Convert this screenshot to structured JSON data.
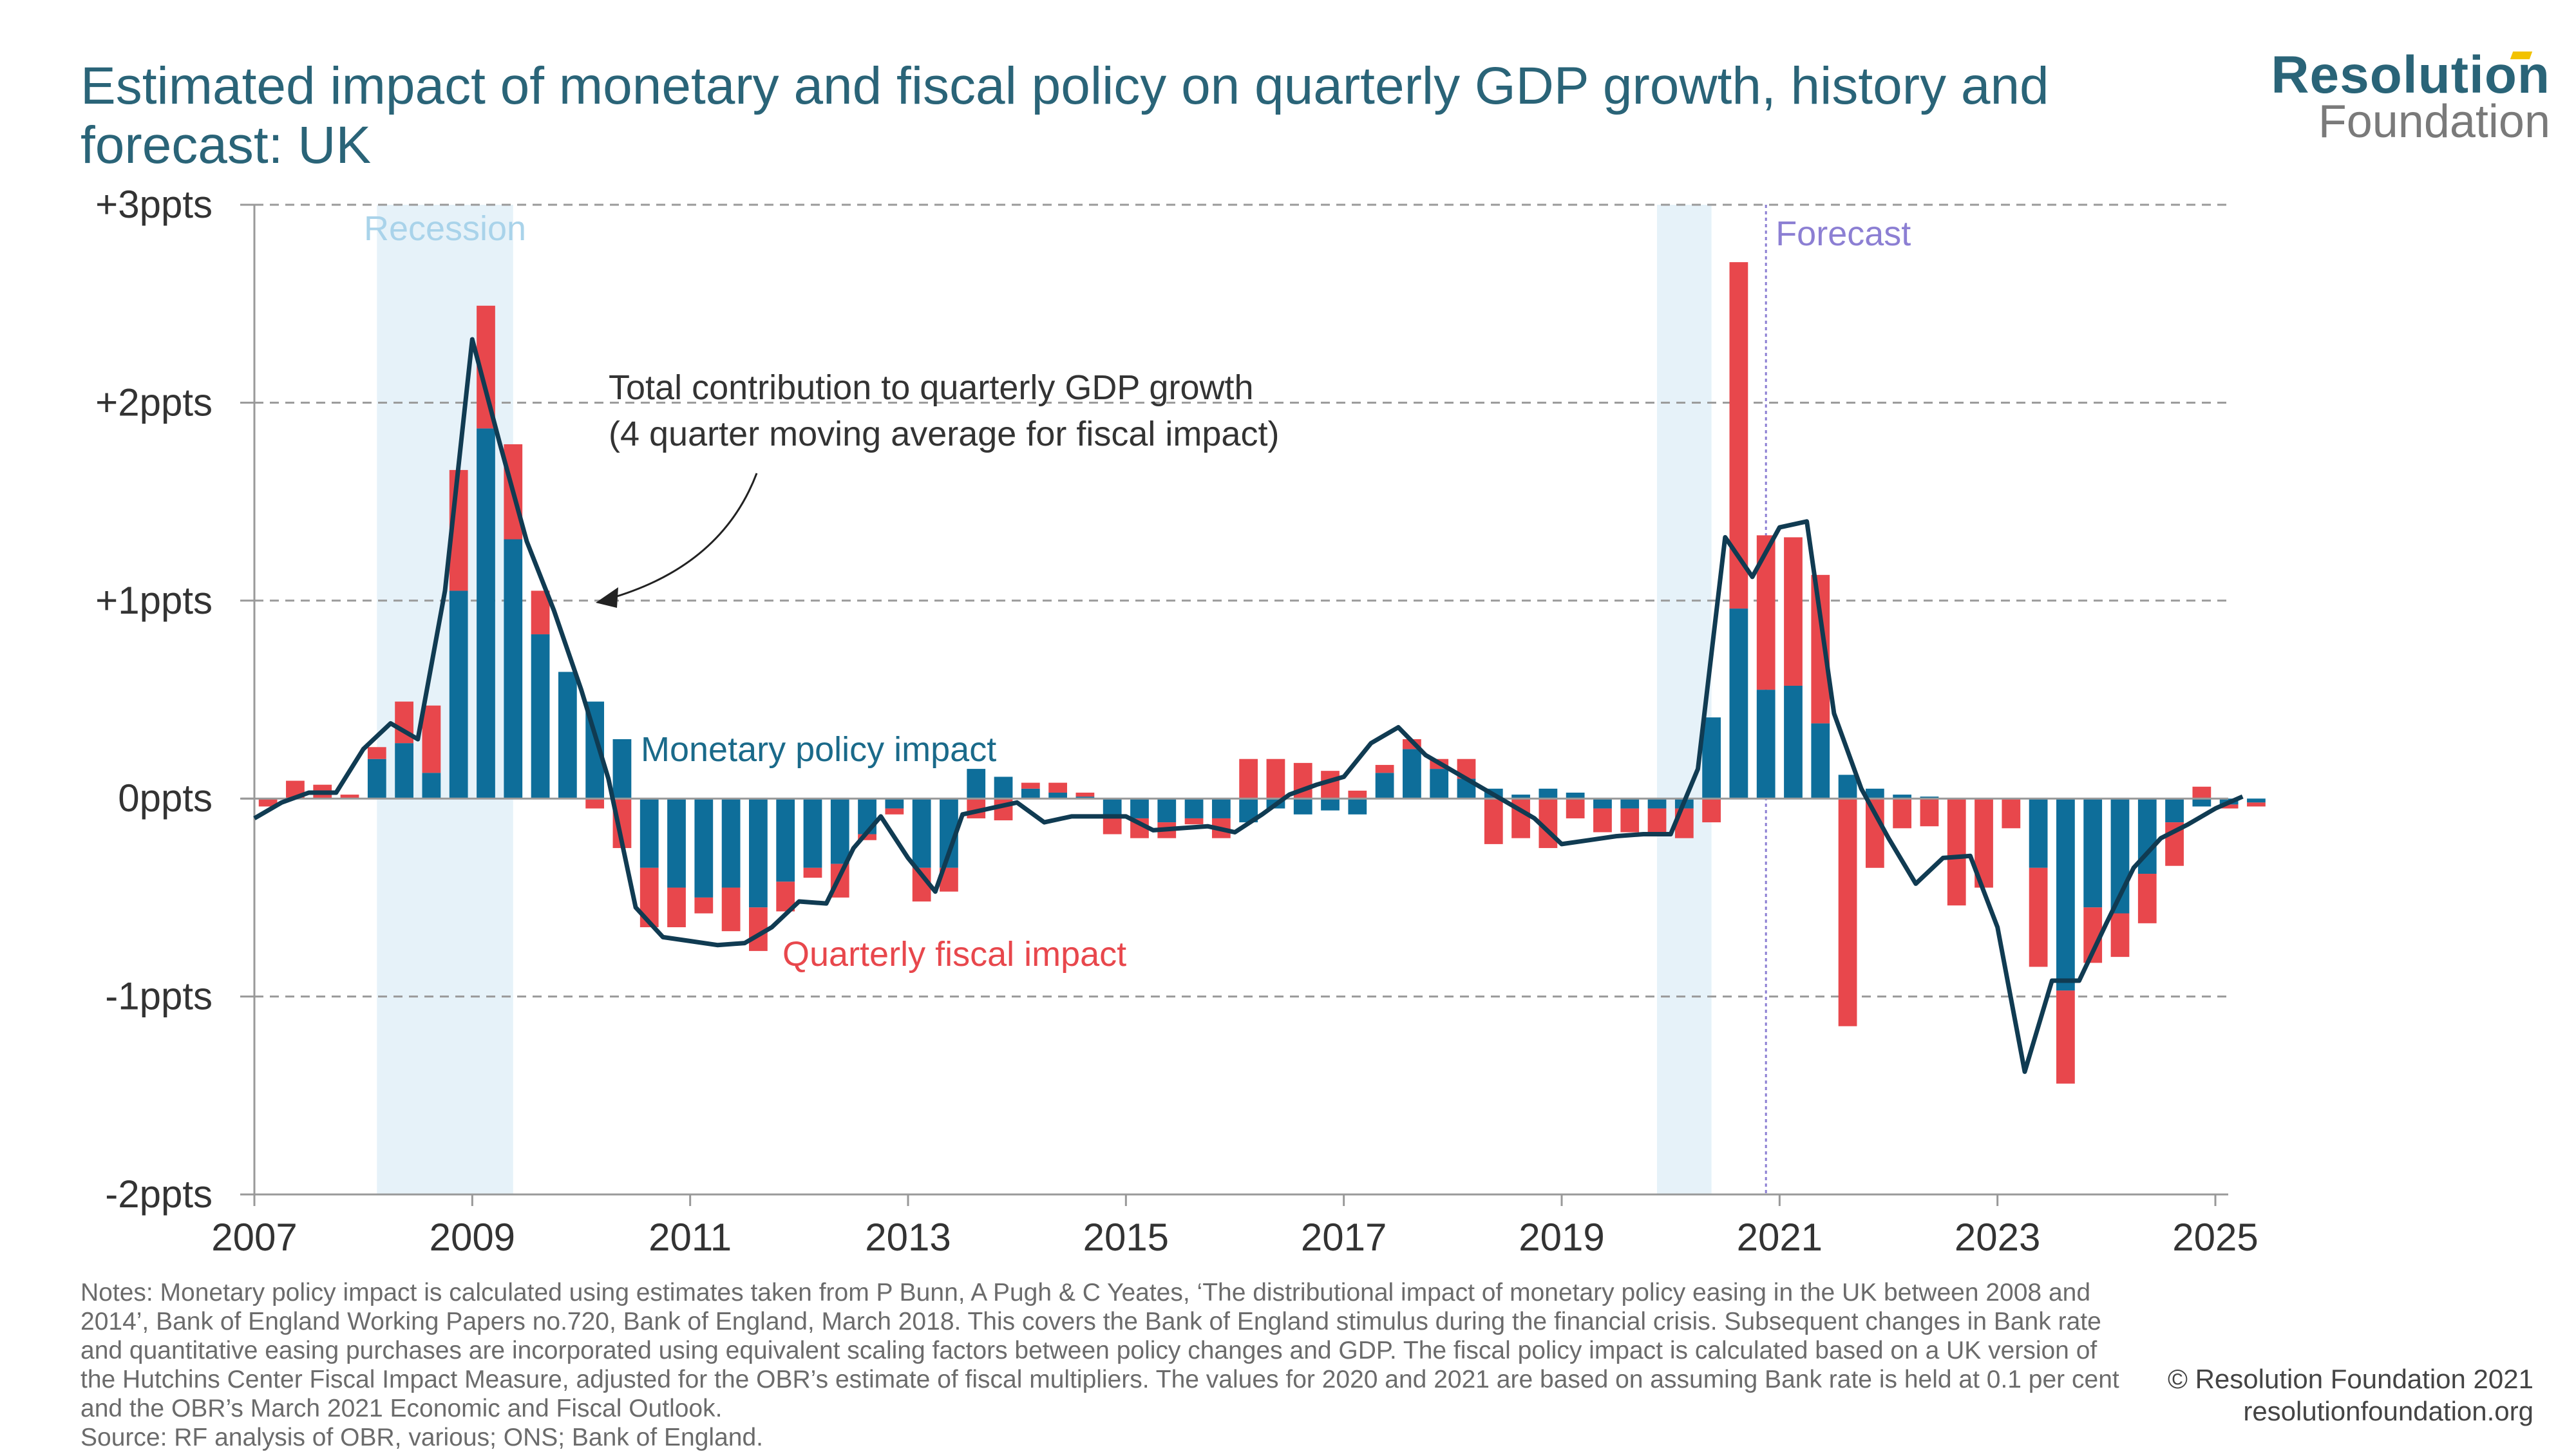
{
  "title": "Estimated impact of monetary and fiscal policy on quarterly GDP growth, history and forecast: UK",
  "logo": {
    "main": "Resolution",
    "sub": "Foundation"
  },
  "colors": {
    "monetary": "#0e6e9a",
    "fiscal": "#e8474c",
    "line": "#103b52",
    "recession": "#e6f2f9",
    "forecast": "#8c7fd3",
    "grid": "#9a9a9a",
    "title": "#2a6478"
  },
  "chart_data": {
    "type": "bar",
    "stacked": true,
    "x_start": 2007.0,
    "x_step": 0.25,
    "xlim": [
      2007,
      2025
    ],
    "ylim": [
      -2,
      3
    ],
    "y_ticks": [
      3,
      2,
      1,
      0,
      -1,
      -2
    ],
    "y_tick_labels": [
      "+3ppts",
      "+2ppts",
      "+1ppts",
      "0ppts",
      "-1ppts",
      "-2ppts"
    ],
    "x_ticks": [
      2007,
      2009,
      2011,
      2013,
      2015,
      2017,
      2019,
      2021,
      2023,
      2025
    ],
    "x_tick_labels": [
      "2007",
      "2009",
      "2011",
      "2013",
      "2015",
      "2017",
      "2019",
      "2021",
      "2023",
      "2025"
    ],
    "grid": "horizontal dashed",
    "series": [
      {
        "name": "Monetary policy impact",
        "kind": "bar",
        "values": [
          0,
          0,
          0,
          0,
          0.2,
          0.28,
          0.13,
          1.05,
          1.87,
          1.31,
          0.83,
          0.64,
          0.49,
          0.3,
          -0.35,
          -0.45,
          -0.5,
          -0.45,
          -0.55,
          -0.42,
          -0.35,
          -0.33,
          -0.18,
          -0.05,
          -0.35,
          -0.35,
          0.15,
          0.11,
          0.05,
          0.03,
          0.01,
          -0.1,
          -0.1,
          -0.12,
          -0.1,
          -0.1,
          -0.12,
          -0.05,
          -0.08,
          -0.06,
          -0.08,
          0.13,
          0.25,
          0.15,
          0.1,
          0.05,
          0.02,
          0.05,
          0.03,
          -0.05,
          -0.05,
          -0.05,
          -0.05,
          0.41,
          0.96,
          0.55,
          0.57,
          0.38,
          0.12,
          0.05,
          0.02,
          0.01,
          0,
          0,
          0,
          -0.35,
          -0.97,
          -0.55,
          -0.58,
          -0.38,
          -0.12,
          -0.04,
          -0.03,
          -0.02
        ]
      },
      {
        "name": "Quarterly fiscal impact",
        "kind": "bar",
        "values": [
          -0.04,
          0.09,
          0.07,
          0.02,
          0.06,
          0.21,
          0.34,
          0.61,
          0.62,
          0.48,
          0.22,
          0,
          -0.05,
          -0.25,
          -0.3,
          -0.2,
          -0.08,
          -0.22,
          -0.22,
          -0.15,
          -0.05,
          -0.17,
          -0.03,
          -0.03,
          -0.17,
          -0.12,
          -0.1,
          -0.11,
          0.03,
          0.05,
          0.02,
          -0.08,
          -0.1,
          -0.08,
          -0.03,
          -0.1,
          0.2,
          0.2,
          0.18,
          0.14,
          0.04,
          0.04,
          0.05,
          0.05,
          0.1,
          -0.23,
          -0.2,
          -0.25,
          -0.1,
          -0.12,
          -0.12,
          -0.12,
          -0.15,
          -0.12,
          1.75,
          0.78,
          0.75,
          0.75,
          -1.15,
          -0.35,
          -0.15,
          -0.14,
          -0.54,
          -0.45,
          -0.15,
          -0.5,
          -0.47,
          -0.28,
          -0.22,
          -0.25,
          -0.22,
          0.06,
          -0.02,
          -0.02
        ]
      },
      {
        "name": "Total contribution to quarterly GDP growth",
        "kind": "line",
        "points": [
          [
            2007.0,
            -0.1
          ],
          [
            2007.25,
            -0.02
          ],
          [
            2007.5,
            0.03
          ],
          [
            2007.75,
            0.03
          ],
          [
            2008.0,
            0.25
          ],
          [
            2008.25,
            0.38
          ],
          [
            2008.5,
            0.3
          ],
          [
            2008.75,
            1.05
          ],
          [
            2009.0,
            2.32
          ],
          [
            2009.25,
            1.8
          ],
          [
            2009.5,
            1.3
          ],
          [
            2009.75,
            0.95
          ],
          [
            2010.0,
            0.55
          ],
          [
            2010.25,
            0.1
          ],
          [
            2010.5,
            -0.55
          ],
          [
            2010.75,
            -0.7
          ],
          [
            2011.0,
            -0.72
          ],
          [
            2011.25,
            -0.74
          ],
          [
            2011.5,
            -0.73
          ],
          [
            2011.75,
            -0.65
          ],
          [
            2012.0,
            -0.52
          ],
          [
            2012.25,
            -0.53
          ],
          [
            2012.5,
            -0.25
          ],
          [
            2012.75,
            -0.09
          ],
          [
            2013.0,
            -0.3
          ],
          [
            2013.25,
            -0.47
          ],
          [
            2013.5,
            -0.08
          ],
          [
            2013.75,
            -0.05
          ],
          [
            2014.0,
            -0.02
          ],
          [
            2014.25,
            -0.12
          ],
          [
            2014.5,
            -0.09
          ],
          [
            2014.75,
            -0.09
          ],
          [
            2015.0,
            -0.09
          ],
          [
            2015.25,
            -0.16
          ],
          [
            2015.5,
            -0.15
          ],
          [
            2015.75,
            -0.14
          ],
          [
            2016.0,
            -0.17
          ],
          [
            2016.25,
            -0.08
          ],
          [
            2016.5,
            0.02
          ],
          [
            2016.75,
            0.07
          ],
          [
            2017.0,
            0.11
          ],
          [
            2017.25,
            0.28
          ],
          [
            2017.5,
            0.36
          ],
          [
            2017.75,
            0.22
          ],
          [
            2018.0,
            0.14
          ],
          [
            2018.25,
            0.06
          ],
          [
            2018.5,
            -0.02
          ],
          [
            2018.75,
            -0.1
          ],
          [
            2019.0,
            -0.23
          ],
          [
            2019.25,
            -0.21
          ],
          [
            2019.5,
            -0.19
          ],
          [
            2019.75,
            -0.18
          ],
          [
            2020.0,
            -0.18
          ],
          [
            2020.25,
            0.15
          ],
          [
            2020.5,
            1.32
          ],
          [
            2020.75,
            1.12
          ],
          [
            2021.0,
            1.37
          ],
          [
            2021.25,
            1.4
          ],
          [
            2021.5,
            0.43
          ],
          [
            2021.75,
            0.05
          ],
          [
            2022.0,
            -0.2
          ],
          [
            2022.25,
            -0.43
          ],
          [
            2022.5,
            -0.3
          ],
          [
            2022.75,
            -0.29
          ],
          [
            2023.0,
            -0.65
          ],
          [
            2023.25,
            -1.38
          ],
          [
            2023.5,
            -0.92
          ],
          [
            2023.75,
            -0.92
          ],
          [
            2024.0,
            -0.63
          ],
          [
            2024.25,
            -0.35
          ],
          [
            2024.5,
            -0.2
          ],
          [
            2024.75,
            -0.13
          ],
          [
            2025.0,
            -0.05
          ],
          [
            2025.25,
            0.01
          ]
        ]
      }
    ],
    "recession_periods": [
      [
        2008.125,
        2009.375
      ],
      [
        2019.875,
        2020.375
      ]
    ],
    "forecast_start": 2020.875,
    "annotations": {
      "recession": "Recession",
      "forecast": "Forecast",
      "total_line1": "Total contribution to quarterly GDP growth",
      "total_line2": "(4 quarter moving average for fiscal impact)",
      "monetary": "Monetary policy impact",
      "fiscal": "Quarterly fiscal impact"
    },
    "legend": "inline labels"
  },
  "notes": {
    "text": "Notes: Monetary policy impact is calculated using estimates taken from P Bunn, A Pugh & C Yeates, ‘The distributional impact of monetary policy easing in the UK between 2008 and 2014’, Bank of England Working Papers no.720, Bank of England, March 2018. This covers the Bank of England stimulus during the financial crisis. Subsequent changes in Bank rate and quantitative easing purchases are incorporated using equivalent scaling factors between policy changes and GDP. The fiscal policy impact is calculated based on a UK version of the Hutchins Center Fiscal Impact Measure, adjusted for the OBR’s estimate of fiscal multipliers. The values for 2020 and 2021 are based on assuming Bank rate is held at 0.1 per cent and the OBR’s March 2021 Economic and Fiscal Outlook.",
    "source": "Source: RF analysis of OBR, various; ONS; Bank of England."
  },
  "copyright": {
    "line1": "© Resolution Foundation 2021",
    "line2": "resolutionfoundation.org"
  }
}
